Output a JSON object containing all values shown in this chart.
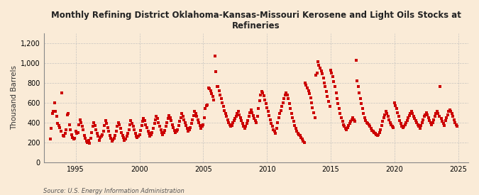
{
  "title": "Monthly Refining District Oklahoma-Kansas-Missouri Kerosene and Light Oils Stocks at\nRefineries",
  "ylabel": "Thousand Barrels",
  "source": "Source: U.S. Energy Information Administration",
  "background_color": "#faebd7",
  "dot_color": "#cc0000",
  "grid_color": "#bbbbbb",
  "xlim": [
    1992.5,
    2025.8
  ],
  "ylim": [
    0,
    1300
  ],
  "yticks": [
    0,
    200,
    400,
    600,
    800,
    1000,
    1200
  ],
  "ytick_labels": [
    "0",
    "200",
    "400",
    "600",
    "800",
    "1,000",
    "1,200"
  ],
  "xticks": [
    1995,
    2000,
    2005,
    2010,
    2015,
    2020,
    2025
  ],
  "data": [
    [
      1993.0,
      230
    ],
    [
      1993.08,
      340
    ],
    [
      1993.17,
      490
    ],
    [
      1993.25,
      510
    ],
    [
      1993.33,
      595
    ],
    [
      1993.42,
      510
    ],
    [
      1993.5,
      460
    ],
    [
      1993.58,
      390
    ],
    [
      1993.67,
      370
    ],
    [
      1993.75,
      350
    ],
    [
      1993.83,
      310
    ],
    [
      1993.92,
      700
    ],
    [
      1994.0,
      270
    ],
    [
      1994.08,
      265
    ],
    [
      1994.17,
      290
    ],
    [
      1994.25,
      330
    ],
    [
      1994.33,
      480
    ],
    [
      1994.42,
      490
    ],
    [
      1994.5,
      380
    ],
    [
      1994.58,
      330
    ],
    [
      1994.67,
      280
    ],
    [
      1994.75,
      250
    ],
    [
      1994.83,
      230
    ],
    [
      1994.92,
      240
    ],
    [
      1995.0,
      310
    ],
    [
      1995.08,
      290
    ],
    [
      1995.17,
      300
    ],
    [
      1995.25,
      380
    ],
    [
      1995.33,
      430
    ],
    [
      1995.42,
      400
    ],
    [
      1995.5,
      360
    ],
    [
      1995.58,
      330
    ],
    [
      1995.67,
      270
    ],
    [
      1995.75,
      240
    ],
    [
      1995.83,
      210
    ],
    [
      1995.92,
      200
    ],
    [
      1996.0,
      220
    ],
    [
      1996.08,
      190
    ],
    [
      1996.17,
      240
    ],
    [
      1996.25,
      300
    ],
    [
      1996.33,
      360
    ],
    [
      1996.42,
      400
    ],
    [
      1996.5,
      370
    ],
    [
      1996.58,
      330
    ],
    [
      1996.67,
      290
    ],
    [
      1996.75,
      260
    ],
    [
      1996.83,
      220
    ],
    [
      1996.92,
      250
    ],
    [
      1997.0,
      260
    ],
    [
      1997.08,
      280
    ],
    [
      1997.17,
      310
    ],
    [
      1997.25,
      370
    ],
    [
      1997.33,
      420
    ],
    [
      1997.42,
      390
    ],
    [
      1997.5,
      350
    ],
    [
      1997.58,
      310
    ],
    [
      1997.67,
      270
    ],
    [
      1997.75,
      240
    ],
    [
      1997.83,
      210
    ],
    [
      1997.92,
      225
    ],
    [
      1998.0,
      240
    ],
    [
      1998.08,
      270
    ],
    [
      1998.17,
      310
    ],
    [
      1998.25,
      360
    ],
    [
      1998.33,
      400
    ],
    [
      1998.42,
      380
    ],
    [
      1998.5,
      340
    ],
    [
      1998.58,
      300
    ],
    [
      1998.67,
      270
    ],
    [
      1998.75,
      250
    ],
    [
      1998.83,
      220
    ],
    [
      1998.92,
      230
    ],
    [
      1999.0,
      260
    ],
    [
      1999.08,
      290
    ],
    [
      1999.17,
      330
    ],
    [
      1999.25,
      380
    ],
    [
      1999.33,
      420
    ],
    [
      1999.42,
      390
    ],
    [
      1999.5,
      360
    ],
    [
      1999.58,
      330
    ],
    [
      1999.67,
      290
    ],
    [
      1999.75,
      260
    ],
    [
      1999.83,
      250
    ],
    [
      1999.92,
      265
    ],
    [
      2000.0,
      280
    ],
    [
      2000.08,
      320
    ],
    [
      2000.17,
      370
    ],
    [
      2000.25,
      410
    ],
    [
      2000.33,
      440
    ],
    [
      2000.42,
      420
    ],
    [
      2000.5,
      380
    ],
    [
      2000.58,
      350
    ],
    [
      2000.67,
      310
    ],
    [
      2000.75,
      290
    ],
    [
      2000.83,
      260
    ],
    [
      2000.92,
      280
    ],
    [
      2001.0,
      300
    ],
    [
      2001.08,
      340
    ],
    [
      2001.17,
      390
    ],
    [
      2001.25,
      430
    ],
    [
      2001.33,
      460
    ],
    [
      2001.42,
      440
    ],
    [
      2001.5,
      400
    ],
    [
      2001.58,
      360
    ],
    [
      2001.67,
      330
    ],
    [
      2001.75,
      300
    ],
    [
      2001.83,
      280
    ],
    [
      2001.92,
      300
    ],
    [
      2002.0,
      320
    ],
    [
      2002.08,
      360
    ],
    [
      2002.17,
      400
    ],
    [
      2002.25,
      440
    ],
    [
      2002.33,
      470
    ],
    [
      2002.42,
      450
    ],
    [
      2002.5,
      420
    ],
    [
      2002.58,
      380
    ],
    [
      2002.67,
      350
    ],
    [
      2002.75,
      320
    ],
    [
      2002.83,
      300
    ],
    [
      2002.92,
      310
    ],
    [
      2003.0,
      330
    ],
    [
      2003.08,
      370
    ],
    [
      2003.17,
      410
    ],
    [
      2003.25,
      450
    ],
    [
      2003.33,
      490
    ],
    [
      2003.42,
      460
    ],
    [
      2003.5,
      430
    ],
    [
      2003.58,
      400
    ],
    [
      2003.67,
      370
    ],
    [
      2003.75,
      340
    ],
    [
      2003.83,
      310
    ],
    [
      2003.92,
      330
    ],
    [
      2004.0,
      350
    ],
    [
      2004.08,
      390
    ],
    [
      2004.17,
      430
    ],
    [
      2004.25,
      470
    ],
    [
      2004.33,
      510
    ],
    [
      2004.42,
      490
    ],
    [
      2004.5,
      460
    ],
    [
      2004.58,
      430
    ],
    [
      2004.67,
      400
    ],
    [
      2004.75,
      370
    ],
    [
      2004.83,
      340
    ],
    [
      2004.92,
      360
    ],
    [
      2005.0,
      380
    ],
    [
      2005.08,
      450
    ],
    [
      2005.17,
      540
    ],
    [
      2005.25,
      570
    ],
    [
      2005.33,
      580
    ],
    [
      2005.42,
      750
    ],
    [
      2005.5,
      740
    ],
    [
      2005.58,
      720
    ],
    [
      2005.67,
      690
    ],
    [
      2005.75,
      660
    ],
    [
      2005.83,
      630
    ],
    [
      2005.92,
      1070
    ],
    [
      2006.0,
      910
    ],
    [
      2006.08,
      760
    ],
    [
      2006.17,
      760
    ],
    [
      2006.25,
      720
    ],
    [
      2006.33,
      680
    ],
    [
      2006.42,
      640
    ],
    [
      2006.5,
      600
    ],
    [
      2006.58,
      560
    ],
    [
      2006.67,
      520
    ],
    [
      2006.75,
      490
    ],
    [
      2006.83,
      460
    ],
    [
      2006.92,
      430
    ],
    [
      2007.0,
      400
    ],
    [
      2007.08,
      380
    ],
    [
      2007.17,
      360
    ],
    [
      2007.25,
      370
    ],
    [
      2007.33,
      400
    ],
    [
      2007.42,
      420
    ],
    [
      2007.5,
      440
    ],
    [
      2007.58,
      460
    ],
    [
      2007.67,
      490
    ],
    [
      2007.75,
      510
    ],
    [
      2007.83,
      480
    ],
    [
      2007.92,
      450
    ],
    [
      2008.0,
      420
    ],
    [
      2008.08,
      390
    ],
    [
      2008.17,
      360
    ],
    [
      2008.25,
      340
    ],
    [
      2008.33,
      360
    ],
    [
      2008.42,
      390
    ],
    [
      2008.5,
      420
    ],
    [
      2008.58,
      460
    ],
    [
      2008.67,
      500
    ],
    [
      2008.75,
      530
    ],
    [
      2008.83,
      500
    ],
    [
      2008.92,
      470
    ],
    [
      2009.0,
      440
    ],
    [
      2009.08,
      420
    ],
    [
      2009.17,
      400
    ],
    [
      2009.25,
      460
    ],
    [
      2009.33,
      540
    ],
    [
      2009.42,
      620
    ],
    [
      2009.5,
      680
    ],
    [
      2009.58,
      710
    ],
    [
      2009.67,
      700
    ],
    [
      2009.75,
      670
    ],
    [
      2009.83,
      630
    ],
    [
      2009.92,
      590
    ],
    [
      2010.0,
      550
    ],
    [
      2010.08,
      510
    ],
    [
      2010.17,
      470
    ],
    [
      2010.25,
      430
    ],
    [
      2010.33,
      390
    ],
    [
      2010.42,
      360
    ],
    [
      2010.5,
      330
    ],
    [
      2010.58,
      310
    ],
    [
      2010.67,
      290
    ],
    [
      2010.75,
      340
    ],
    [
      2010.83,
      400
    ],
    [
      2010.92,
      450
    ],
    [
      2011.0,
      490
    ],
    [
      2011.08,
      520
    ],
    [
      2011.17,
      560
    ],
    [
      2011.25,
      600
    ],
    [
      2011.33,
      640
    ],
    [
      2011.42,
      680
    ],
    [
      2011.5,
      700
    ],
    [
      2011.58,
      680
    ],
    [
      2011.67,
      640
    ],
    [
      2011.75,
      590
    ],
    [
      2011.83,
      540
    ],
    [
      2011.92,
      490
    ],
    [
      2012.0,
      450
    ],
    [
      2012.08,
      410
    ],
    [
      2012.17,
      370
    ],
    [
      2012.25,
      340
    ],
    [
      2012.33,
      310
    ],
    [
      2012.42,
      290
    ],
    [
      2012.5,
      280
    ],
    [
      2012.58,
      270
    ],
    [
      2012.67,
      250
    ],
    [
      2012.75,
      230
    ],
    [
      2012.83,
      210
    ],
    [
      2012.92,
      200
    ],
    [
      2013.0,
      800
    ],
    [
      2013.08,
      780
    ],
    [
      2013.17,
      750
    ],
    [
      2013.25,
      720
    ],
    [
      2013.33,
      690
    ],
    [
      2013.42,
      650
    ],
    [
      2013.5,
      600
    ],
    [
      2013.58,
      550
    ],
    [
      2013.67,
      500
    ],
    [
      2013.75,
      450
    ],
    [
      2013.83,
      880
    ],
    [
      2013.92,
      900
    ],
    [
      2014.0,
      1010
    ],
    [
      2014.08,
      980
    ],
    [
      2014.17,
      950
    ],
    [
      2014.25,
      920
    ],
    [
      2014.33,
      890
    ],
    [
      2014.42,
      850
    ],
    [
      2014.5,
      800
    ],
    [
      2014.58,
      760
    ],
    [
      2014.67,
      710
    ],
    [
      2014.75,
      660
    ],
    [
      2014.83,
      610
    ],
    [
      2014.92,
      560
    ],
    [
      2015.0,
      930
    ],
    [
      2015.08,
      900
    ],
    [
      2015.17,
      860
    ],
    [
      2015.25,
      810
    ],
    [
      2015.33,
      760
    ],
    [
      2015.42,
      700
    ],
    [
      2015.5,
      640
    ],
    [
      2015.58,
      590
    ],
    [
      2015.67,
      540
    ],
    [
      2015.75,
      490
    ],
    [
      2015.83,
      450
    ],
    [
      2015.92,
      410
    ],
    [
      2016.0,
      380
    ],
    [
      2016.08,
      360
    ],
    [
      2016.17,
      340
    ],
    [
      2016.25,
      330
    ],
    [
      2016.33,
      350
    ],
    [
      2016.42,
      370
    ],
    [
      2016.5,
      390
    ],
    [
      2016.58,
      410
    ],
    [
      2016.67,
      430
    ],
    [
      2016.75,
      450
    ],
    [
      2016.83,
      430
    ],
    [
      2016.92,
      410
    ],
    [
      2017.0,
      1030
    ],
    [
      2017.08,
      820
    ],
    [
      2017.17,
      760
    ],
    [
      2017.25,
      700
    ],
    [
      2017.33,
      640
    ],
    [
      2017.42,
      590
    ],
    [
      2017.5,
      540
    ],
    [
      2017.58,
      490
    ],
    [
      2017.67,
      450
    ],
    [
      2017.75,
      420
    ],
    [
      2017.83,
      400
    ],
    [
      2017.92,
      390
    ],
    [
      2018.0,
      380
    ],
    [
      2018.08,
      360
    ],
    [
      2018.17,
      340
    ],
    [
      2018.25,
      320
    ],
    [
      2018.33,
      310
    ],
    [
      2018.42,
      300
    ],
    [
      2018.5,
      290
    ],
    [
      2018.58,
      280
    ],
    [
      2018.67,
      270
    ],
    [
      2018.75,
      280
    ],
    [
      2018.83,
      300
    ],
    [
      2018.92,
      330
    ],
    [
      2019.0,
      370
    ],
    [
      2019.08,
      410
    ],
    [
      2019.17,
      450
    ],
    [
      2019.25,
      480
    ],
    [
      2019.33,
      510
    ],
    [
      2019.42,
      490
    ],
    [
      2019.5,
      460
    ],
    [
      2019.58,
      430
    ],
    [
      2019.67,
      400
    ],
    [
      2019.75,
      380
    ],
    [
      2019.83,
      360
    ],
    [
      2019.92,
      350
    ],
    [
      2020.0,
      600
    ],
    [
      2020.08,
      570
    ],
    [
      2020.17,
      540
    ],
    [
      2020.25,
      500
    ],
    [
      2020.33,
      460
    ],
    [
      2020.42,
      420
    ],
    [
      2020.5,
      390
    ],
    [
      2020.58,
      360
    ],
    [
      2020.67,
      350
    ],
    [
      2020.75,
      360
    ],
    [
      2020.83,
      380
    ],
    [
      2020.92,
      400
    ],
    [
      2021.0,
      420
    ],
    [
      2021.08,
      450
    ],
    [
      2021.17,
      470
    ],
    [
      2021.25,
      490
    ],
    [
      2021.33,
      510
    ],
    [
      2021.42,
      490
    ],
    [
      2021.5,
      460
    ],
    [
      2021.58,
      440
    ],
    [
      2021.67,
      420
    ],
    [
      2021.75,
      400
    ],
    [
      2021.83,
      380
    ],
    [
      2021.92,
      360
    ],
    [
      2022.0,
      340
    ],
    [
      2022.08,
      370
    ],
    [
      2022.17,
      400
    ],
    [
      2022.25,
      430
    ],
    [
      2022.33,
      460
    ],
    [
      2022.42,
      480
    ],
    [
      2022.5,
      500
    ],
    [
      2022.58,
      480
    ],
    [
      2022.67,
      450
    ],
    [
      2022.75,
      420
    ],
    [
      2022.83,
      400
    ],
    [
      2022.92,
      380
    ],
    [
      2023.0,
      400
    ],
    [
      2023.08,
      430
    ],
    [
      2023.17,
      460
    ],
    [
      2023.25,
      490
    ],
    [
      2023.33,
      510
    ],
    [
      2023.42,
      490
    ],
    [
      2023.5,
      460
    ],
    [
      2023.58,
      760
    ],
    [
      2023.67,
      440
    ],
    [
      2023.75,
      410
    ],
    [
      2023.83,
      390
    ],
    [
      2023.92,
      370
    ],
    [
      2024.0,
      420
    ],
    [
      2024.08,
      450
    ],
    [
      2024.17,
      480
    ],
    [
      2024.25,
      510
    ],
    [
      2024.33,
      530
    ],
    [
      2024.42,
      510
    ],
    [
      2024.5,
      490
    ],
    [
      2024.58,
      460
    ],
    [
      2024.67,
      430
    ],
    [
      2024.75,
      400
    ],
    [
      2024.83,
      380
    ],
    [
      2024.92,
      360
    ]
  ]
}
